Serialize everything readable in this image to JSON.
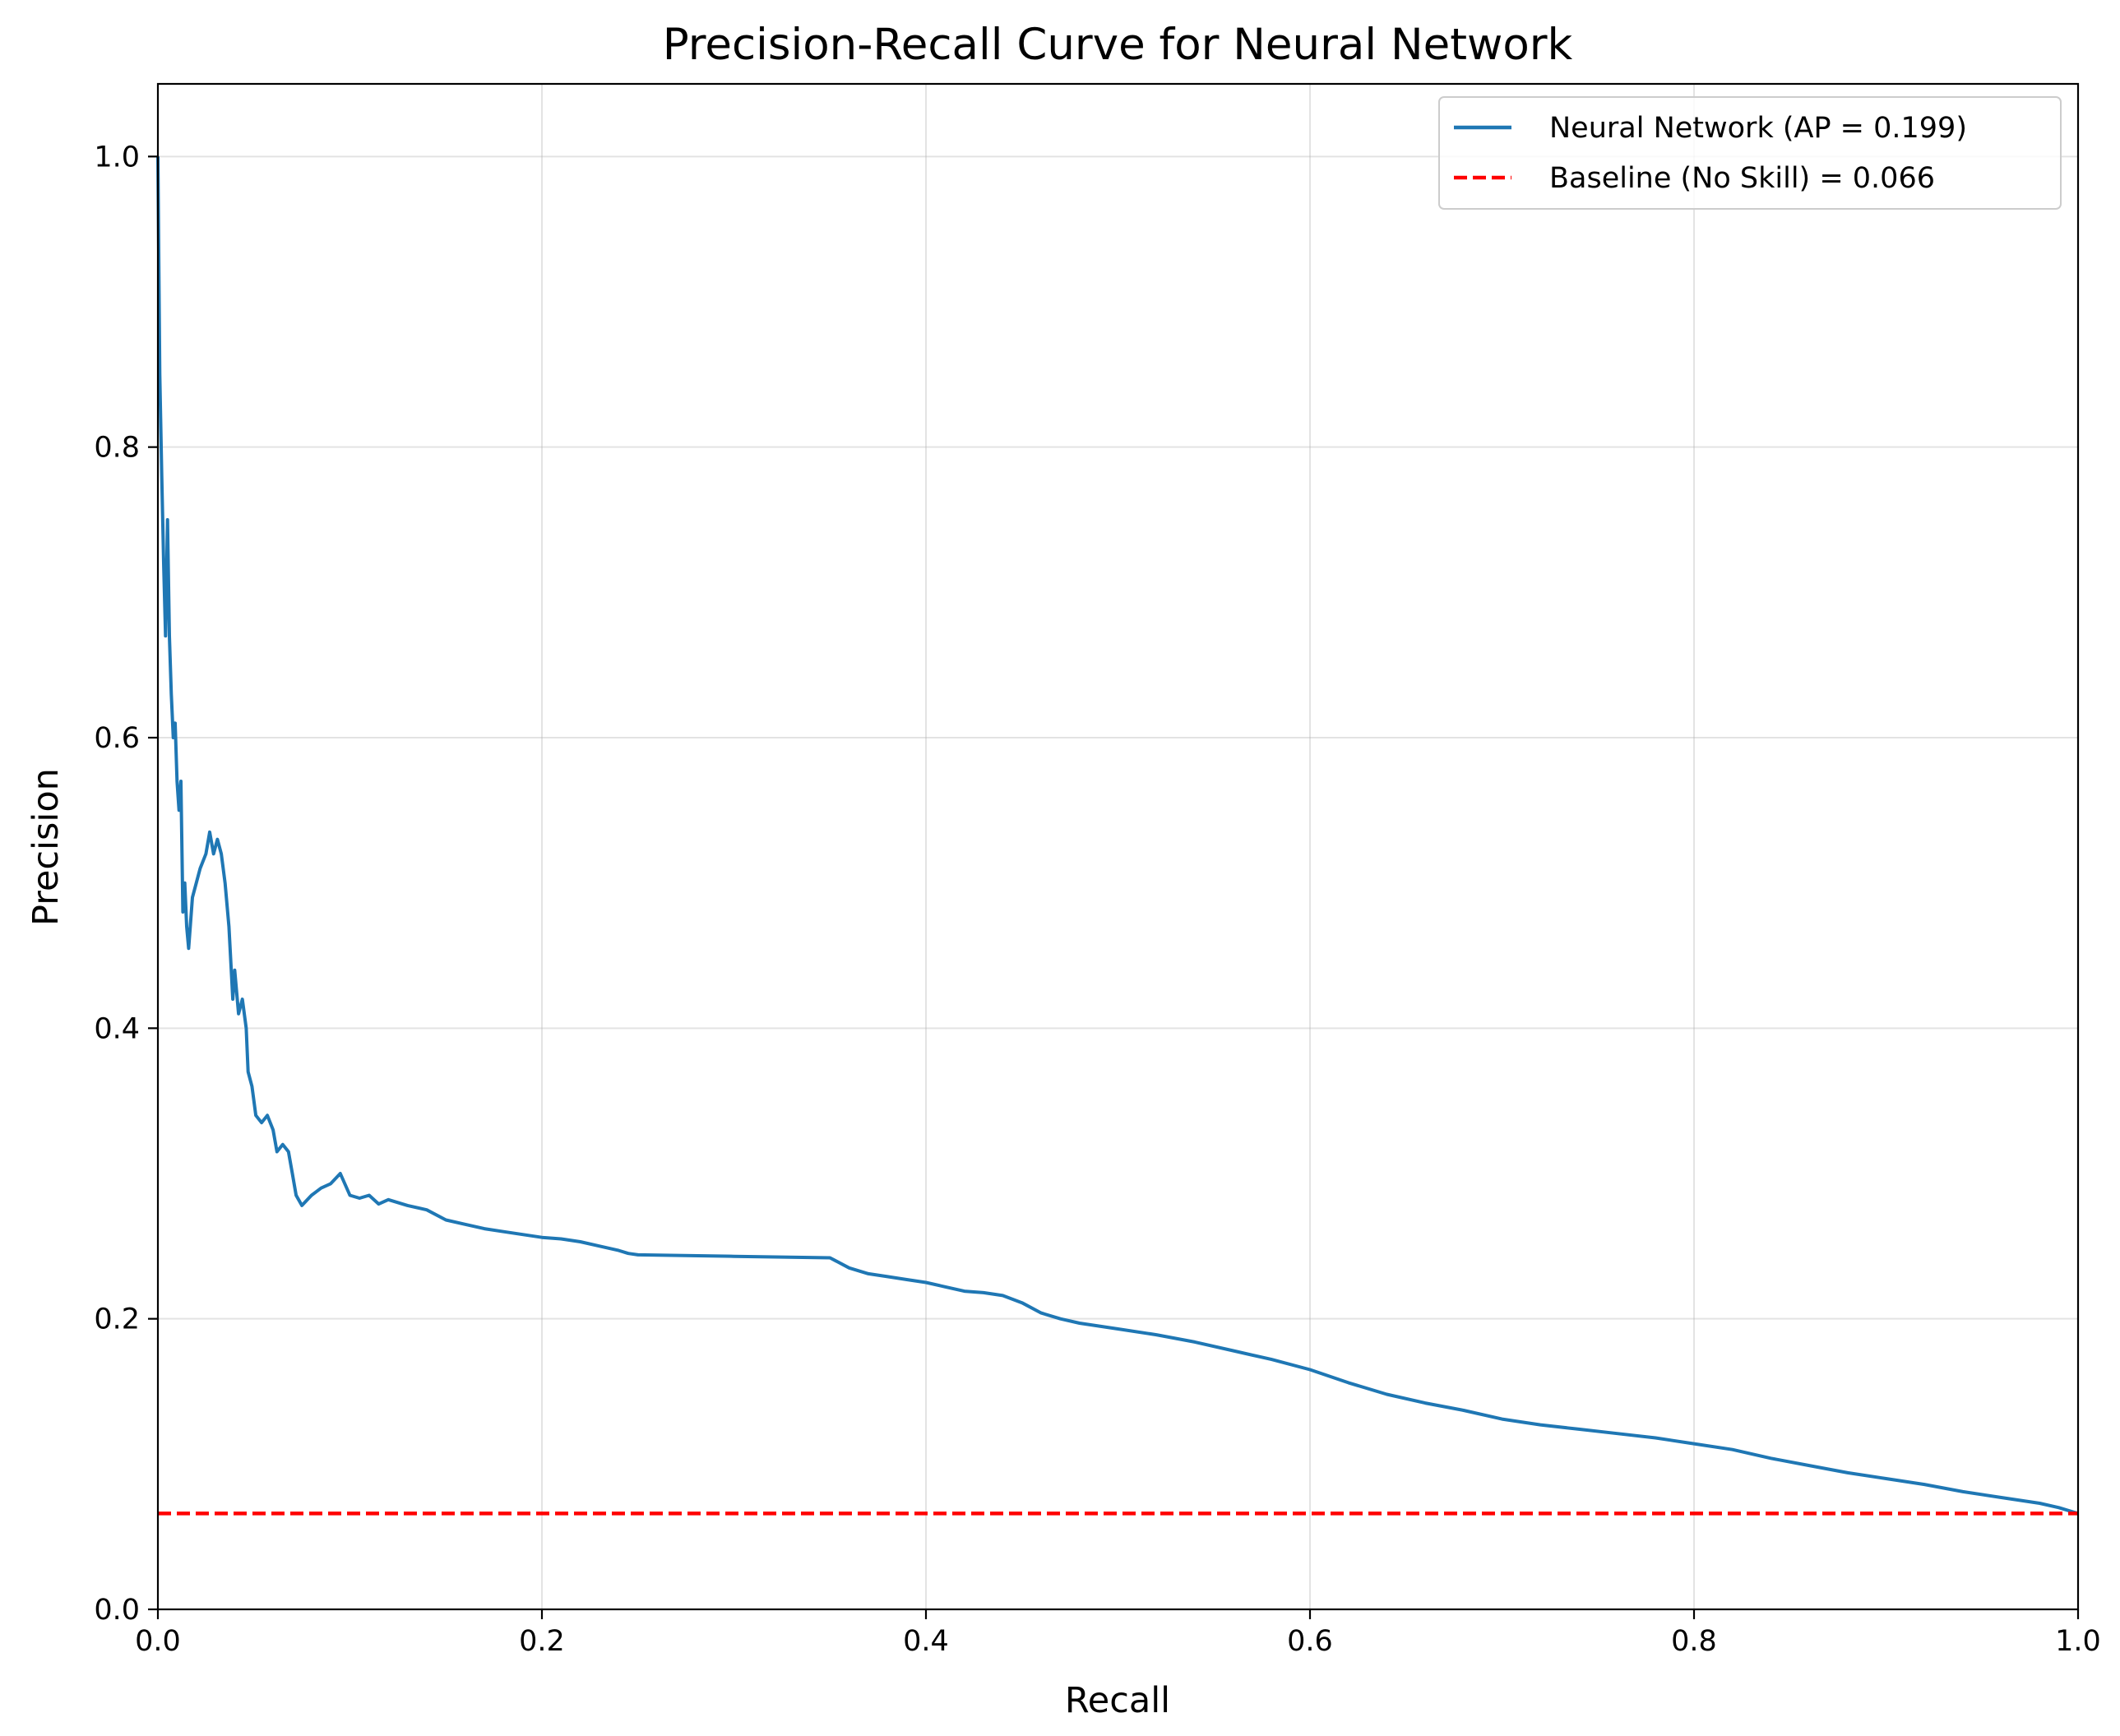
{
  "chart_data": {
    "type": "line",
    "title": "Precision-Recall Curve for Neural Network",
    "xlabel": "Recall",
    "ylabel": "Precision",
    "xlim": [
      0.0,
      1.0
    ],
    "ylim": [
      0.0,
      1.05
    ],
    "x_ticks": [
      0.0,
      0.2,
      0.4,
      0.6,
      0.8,
      1.0
    ],
    "x_tick_labels": [
      "0.0",
      "0.2",
      "0.4",
      "0.6",
      "0.8",
      "1.0"
    ],
    "y_ticks": [
      0.0,
      0.2,
      0.4,
      0.6,
      0.8,
      1.0
    ],
    "y_tick_labels": [
      "0.0",
      "0.2",
      "0.4",
      "0.6",
      "0.8",
      "1.0"
    ],
    "grid": true,
    "legend_position": "top-right",
    "series": [
      {
        "name": "Neural Network (AP = 0.199)",
        "color": "#1f77b4",
        "style": "solid",
        "points": [
          [
            0.0,
            1.0
          ],
          [
            0.001,
            0.85
          ],
          [
            0.002,
            0.78
          ],
          [
            0.003,
            0.72
          ],
          [
            0.004,
            0.67
          ],
          [
            0.005,
            0.75
          ],
          [
            0.006,
            0.67
          ],
          [
            0.007,
            0.63
          ],
          [
            0.008,
            0.6
          ],
          [
            0.009,
            0.61
          ],
          [
            0.01,
            0.57
          ],
          [
            0.011,
            0.55
          ],
          [
            0.012,
            0.57
          ],
          [
            0.013,
            0.48
          ],
          [
            0.014,
            0.5
          ],
          [
            0.015,
            0.47
          ],
          [
            0.016,
            0.455
          ],
          [
            0.018,
            0.49
          ],
          [
            0.02,
            0.5
          ],
          [
            0.022,
            0.51
          ],
          [
            0.025,
            0.52
          ],
          [
            0.027,
            0.535
          ],
          [
            0.029,
            0.52
          ],
          [
            0.031,
            0.53
          ],
          [
            0.033,
            0.52
          ],
          [
            0.035,
            0.5
          ],
          [
            0.037,
            0.47
          ],
          [
            0.039,
            0.42
          ],
          [
            0.04,
            0.44
          ],
          [
            0.042,
            0.41
          ],
          [
            0.044,
            0.42
          ],
          [
            0.046,
            0.4
          ],
          [
            0.047,
            0.37
          ],
          [
            0.049,
            0.36
          ],
          [
            0.051,
            0.34
          ],
          [
            0.054,
            0.335
          ],
          [
            0.057,
            0.34
          ],
          [
            0.06,
            0.33
          ],
          [
            0.062,
            0.315
          ],
          [
            0.065,
            0.32
          ],
          [
            0.068,
            0.315
          ],
          [
            0.07,
            0.3
          ],
          [
            0.072,
            0.285
          ],
          [
            0.075,
            0.278
          ],
          [
            0.08,
            0.285
          ],
          [
            0.085,
            0.29
          ],
          [
            0.09,
            0.293
          ],
          [
            0.095,
            0.3
          ],
          [
            0.1,
            0.285
          ],
          [
            0.105,
            0.283
          ],
          [
            0.11,
            0.285
          ],
          [
            0.115,
            0.279
          ],
          [
            0.12,
            0.282
          ],
          [
            0.13,
            0.278
          ],
          [
            0.14,
            0.275
          ],
          [
            0.15,
            0.268
          ],
          [
            0.16,
            0.265
          ],
          [
            0.17,
            0.262
          ],
          [
            0.18,
            0.26
          ],
          [
            0.19,
            0.258
          ],
          [
            0.2,
            0.256
          ],
          [
            0.21,
            0.255
          ],
          [
            0.22,
            0.253
          ],
          [
            0.23,
            0.25
          ],
          [
            0.24,
            0.247
          ],
          [
            0.245,
            0.245
          ],
          [
            0.25,
            0.244
          ],
          [
            0.3,
            0.243
          ],
          [
            0.35,
            0.242
          ],
          [
            0.36,
            0.235
          ],
          [
            0.37,
            0.231
          ],
          [
            0.38,
            0.229
          ],
          [
            0.39,
            0.227
          ],
          [
            0.4,
            0.225
          ],
          [
            0.41,
            0.222
          ],
          [
            0.42,
            0.219
          ],
          [
            0.43,
            0.218
          ],
          [
            0.44,
            0.216
          ],
          [
            0.45,
            0.211
          ],
          [
            0.46,
            0.204
          ],
          [
            0.47,
            0.2
          ],
          [
            0.48,
            0.197
          ],
          [
            0.49,
            0.195
          ],
          [
            0.5,
            0.193
          ],
          [
            0.52,
            0.189
          ],
          [
            0.54,
            0.184
          ],
          [
            0.56,
            0.178
          ],
          [
            0.58,
            0.172
          ],
          [
            0.6,
            0.165
          ],
          [
            0.62,
            0.156
          ],
          [
            0.64,
            0.148
          ],
          [
            0.66,
            0.142
          ],
          [
            0.68,
            0.137
          ],
          [
            0.7,
            0.131
          ],
          [
            0.72,
            0.127
          ],
          [
            0.74,
            0.124
          ],
          [
            0.76,
            0.121
          ],
          [
            0.78,
            0.118
          ],
          [
            0.8,
            0.114
          ],
          [
            0.82,
            0.11
          ],
          [
            0.84,
            0.104
          ],
          [
            0.86,
            0.099
          ],
          [
            0.88,
            0.094
          ],
          [
            0.9,
            0.09
          ],
          [
            0.92,
            0.086
          ],
          [
            0.94,
            0.081
          ],
          [
            0.96,
            0.077
          ],
          [
            0.98,
            0.073
          ],
          [
            0.99,
            0.07
          ],
          [
            1.0,
            0.066
          ]
        ]
      },
      {
        "name": "Baseline (No Skill) = 0.066",
        "color": "#ff0000",
        "style": "dashed",
        "points": [
          [
            0.0,
            0.066
          ],
          [
            1.0,
            0.066
          ]
        ]
      }
    ]
  }
}
